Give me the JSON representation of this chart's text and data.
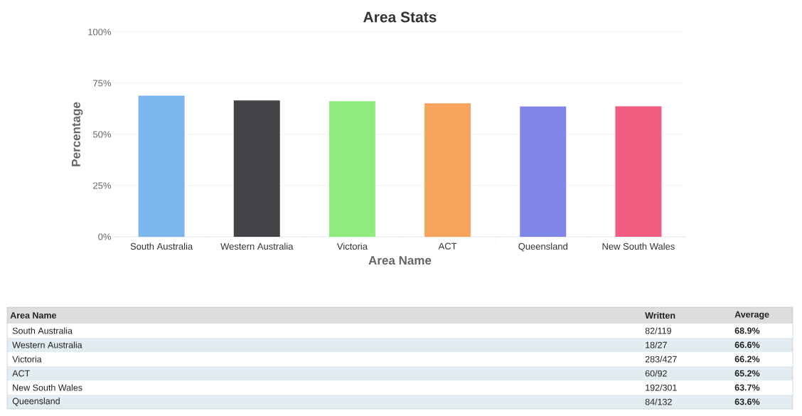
{
  "chart_data": [
    {
      "type": "bar",
      "title": "Area Stats",
      "xlabel": "Area Name",
      "ylabel": "Percentage",
      "categories": [
        "South Australia",
        "Western Australia",
        "Victoria",
        "ACT",
        "Queensland",
        "New South Wales"
      ],
      "values": [
        68.9,
        66.6,
        66.2,
        65.2,
        63.6,
        63.7
      ],
      "colors": [
        "#7cb5ec",
        "#434348",
        "#90ed7d",
        "#f7a35c",
        "#8085e9",
        "#f15c80"
      ],
      "ylim": [
        0,
        100
      ],
      "yticks": [
        {
          "value": 0,
          "label": "0%"
        },
        {
          "value": 25,
          "label": "25%"
        },
        {
          "value": 50,
          "label": "50%"
        },
        {
          "value": 75,
          "label": "75%"
        },
        {
          "value": 100,
          "label": "100%"
        }
      ],
      "grid": "y"
    },
    {
      "type": "other",
      "annotations": [
        "Area Name",
        "Written",
        "Average",
        "South Australia",
        "82/119",
        "68.9%",
        "Western Australia",
        "18/27",
        "66.6%",
        "Victoria",
        "283/427",
        "66.2%",
        "ACT",
        "60/92",
        "65.2%",
        "New South Wales",
        "192/301",
        "63.7%",
        "Queensland",
        "84/132",
        "63.6%"
      ]
    }
  ]
}
